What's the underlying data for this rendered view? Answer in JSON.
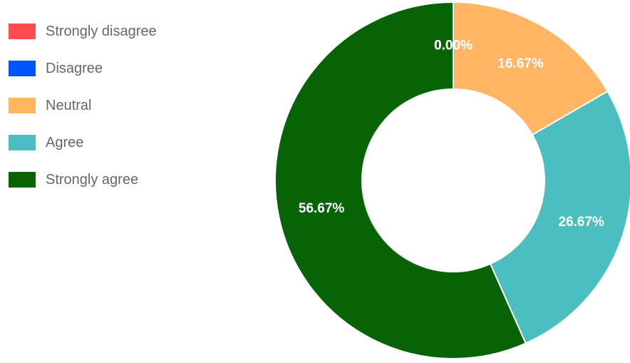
{
  "chart_data": {
    "type": "pie",
    "variant": "donut",
    "categories": [
      "Strongly disagree",
      "Disagree",
      "Neutral",
      "Agree",
      "Strongly agree"
    ],
    "values": [
      0.0,
      0.0,
      16.67,
      26.67,
      56.67
    ],
    "data_labels": [
      "0.00%",
      "0.00%",
      "16.67%",
      "26.67%",
      "56.67%"
    ],
    "colors": [
      "#ff4d4f",
      "#0054ff",
      "#ffb563",
      "#4bbfbf",
      "#066306"
    ],
    "legend_position": "top-left",
    "title": ""
  }
}
